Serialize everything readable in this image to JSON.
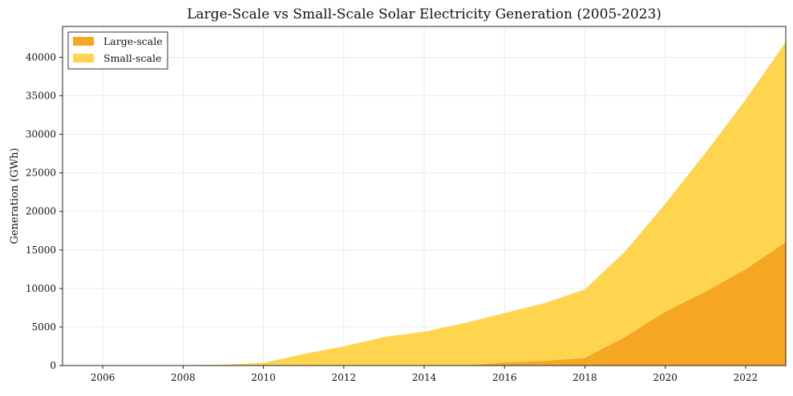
{
  "chart_data": {
    "type": "area",
    "stacked": true,
    "title": "Large-Scale vs Small-Scale Solar Electricity Generation (2005-2023)",
    "xlabel": "",
    "ylabel": "Generation (GWh)",
    "x": [
      2005,
      2006,
      2007,
      2008,
      2009,
      2010,
      2011,
      2012,
      2013,
      2014,
      2015,
      2016,
      2017,
      2018,
      2019,
      2020,
      2021,
      2022,
      2023
    ],
    "series": [
      {
        "name": "Large-scale",
        "color": "#f5a623",
        "values": [
          0,
          0,
          0,
          0,
          0,
          0,
          0,
          0,
          0,
          0,
          0,
          400,
          600,
          1000,
          3700,
          7000,
          9600,
          12500,
          16000
        ]
      },
      {
        "name": "Small-scale",
        "color": "#ffd54f",
        "values": [
          0,
          20,
          30,
          50,
          100,
          350,
          1500,
          2500,
          3700,
          4400,
          5500,
          6400,
          7500,
          8900,
          11100,
          14000,
          18000,
          22000,
          26000
        ]
      }
    ],
    "xlim": [
      2005,
      2023
    ],
    "ylim": [
      0,
      44000
    ],
    "xticks": [
      2006,
      2008,
      2010,
      2012,
      2014,
      2016,
      2018,
      2020,
      2022
    ],
    "yticks": [
      0,
      5000,
      10000,
      15000,
      20000,
      25000,
      30000,
      35000,
      40000
    ],
    "grid": true,
    "legend_position": "upper-left"
  }
}
